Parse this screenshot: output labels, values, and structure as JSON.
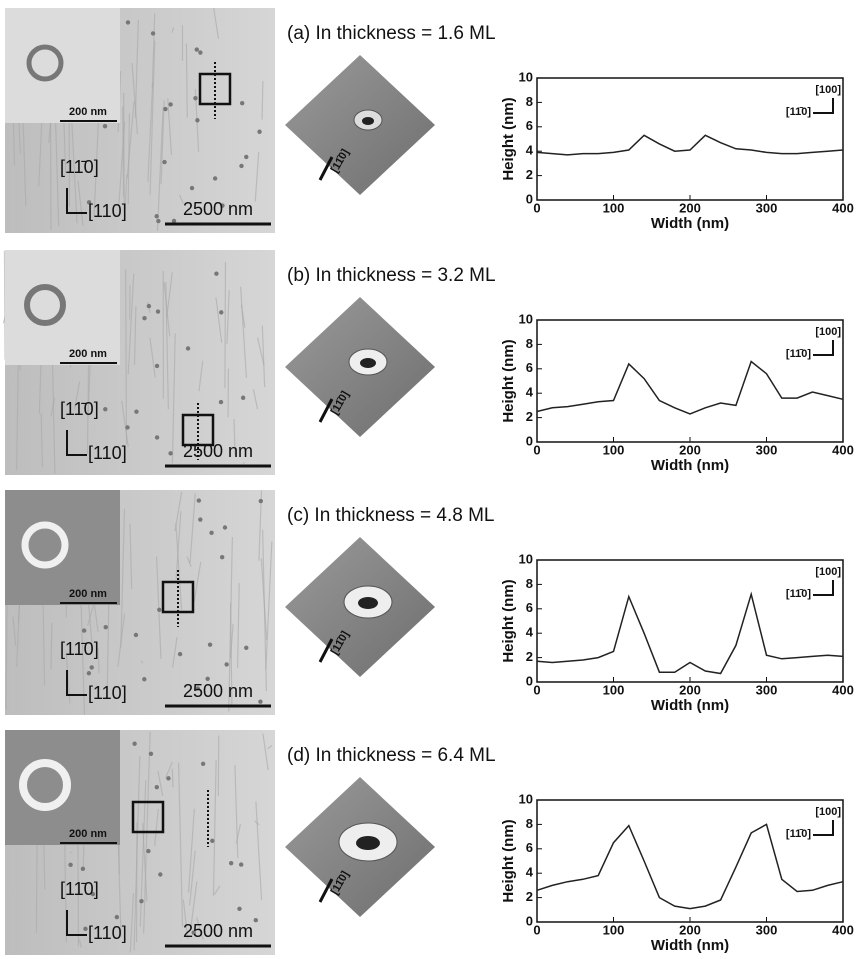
{
  "chart_data": [
    {
      "type": "line",
      "title": "(a) In thickness = 1.6 ML",
      "xlabel": "Width (nm)",
      "ylabel": "Height (nm)",
      "x": [
        0,
        20,
        40,
        60,
        80,
        100,
        120,
        140,
        160,
        180,
        200,
        220,
        240,
        260,
        280,
        300,
        320,
        340,
        360,
        380,
        400
      ],
      "series": [
        {
          "color": "#222222",
          "values": [
            3.9,
            3.8,
            3.7,
            3.8,
            3.8,
            3.9,
            4.1,
            5.3,
            4.6,
            4.0,
            4.1,
            5.3,
            4.7,
            4.2,
            4.1,
            3.9,
            3.8,
            3.8,
            3.9,
            4.0,
            4.1
          ]
        }
      ],
      "xlim": [
        0,
        400
      ],
      "ylim": [
        0,
        10
      ],
      "xticks": [
        0,
        100,
        200,
        300,
        400
      ],
      "yticks": [
        0,
        2,
        4,
        6,
        8,
        10
      ],
      "annotations": [
        "[100]",
        "[11̄0]"
      ]
    },
    {
      "type": "line",
      "title": "(b) In thickness = 3.2 ML",
      "xlabel": "Width (nm)",
      "ylabel": "Height (nm)",
      "x": [
        0,
        20,
        40,
        60,
        80,
        100,
        120,
        140,
        160,
        180,
        200,
        220,
        240,
        260,
        280,
        300,
        320,
        340,
        360,
        380,
        400
      ],
      "series": [
        {
          "color": "#222222",
          "values": [
            2.5,
            2.8,
            2.9,
            3.1,
            3.3,
            3.4,
            6.4,
            5.2,
            3.4,
            2.8,
            2.3,
            2.8,
            3.2,
            3.0,
            6.6,
            5.6,
            3.6,
            3.6,
            4.1,
            3.8,
            3.5
          ]
        }
      ],
      "xlim": [
        0,
        400
      ],
      "ylim": [
        0,
        10
      ],
      "xticks": [
        0,
        100,
        200,
        300,
        400
      ],
      "yticks": [
        0,
        2,
        4,
        6,
        8,
        10
      ],
      "annotations": [
        "[100]",
        "[11̄0]"
      ]
    },
    {
      "type": "line",
      "title": "(c) In thickness = 4.8 ML",
      "xlabel": "Width (nm)",
      "ylabel": "Height (nm)",
      "x": [
        0,
        20,
        40,
        60,
        80,
        100,
        120,
        140,
        160,
        180,
        200,
        220,
        240,
        260,
        280,
        300,
        320,
        340,
        360,
        380,
        400
      ],
      "series": [
        {
          "color": "#222222",
          "values": [
            1.7,
            1.6,
            1.7,
            1.8,
            2.0,
            2.5,
            7.0,
            4.0,
            0.8,
            0.8,
            1.6,
            0.9,
            0.7,
            3.0,
            7.2,
            2.2,
            1.9,
            2.0,
            2.1,
            2.2,
            2.1
          ]
        }
      ],
      "xlim": [
        0,
        400
      ],
      "ylim": [
        0,
        10
      ],
      "xticks": [
        0,
        100,
        200,
        300,
        400
      ],
      "yticks": [
        0,
        2,
        4,
        6,
        8,
        10
      ],
      "annotations": [
        "[100]",
        "[11̄0]"
      ]
    },
    {
      "type": "line",
      "title": "(d) In thickness = 6.4 ML",
      "xlabel": "Width (nm)",
      "ylabel": "Height (nm)",
      "x": [
        0,
        20,
        40,
        60,
        80,
        100,
        120,
        140,
        160,
        180,
        200,
        220,
        240,
        260,
        280,
        300,
        320,
        340,
        360,
        380,
        400
      ],
      "series": [
        {
          "color": "#222222",
          "values": [
            2.6,
            3.0,
            3.3,
            3.5,
            3.8,
            6.5,
            7.9,
            5.0,
            2.0,
            1.3,
            1.1,
            1.3,
            1.8,
            4.5,
            7.3,
            8.0,
            3.5,
            2.5,
            2.6,
            3.0,
            3.3
          ]
        }
      ],
      "xlim": [
        0,
        400
      ],
      "ylim": [
        0,
        10
      ],
      "xticks": [
        0,
        100,
        200,
        300,
        400
      ],
      "yticks": [
        0,
        2,
        4,
        6,
        8,
        10
      ],
      "annotations": [
        "[100]",
        "[11̄0]"
      ]
    }
  ],
  "images": [
    {
      "inset_scale": "200 nm",
      "scale": "2500 nm",
      "dir_up": "[11̄0]",
      "dir_right": "[110]",
      "view_dir": "[11̄0]"
    },
    {
      "inset_scale": "200 nm",
      "scale": "2500 nm",
      "dir_up": "[11̄0]",
      "dir_right": "[110]",
      "view_dir": "[11̄0]"
    },
    {
      "inset_scale": "200 nm",
      "scale": "2500 nm",
      "dir_up": "[11̄0]",
      "dir_right": "[110]",
      "view_dir": "[11̄0]"
    },
    {
      "inset_scale": "200 nm",
      "scale": "2500 nm",
      "dir_up": "[11̄0]",
      "dir_right": "[110]",
      "view_dir": "[11̄0]"
    }
  ]
}
